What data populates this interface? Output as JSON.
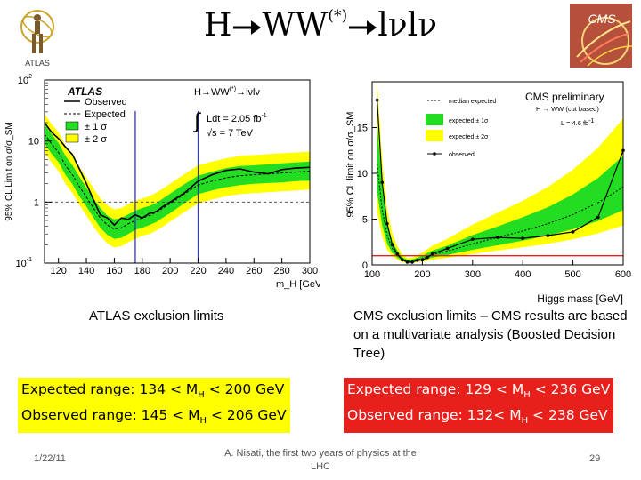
{
  "slide": {
    "title_prefix": "H",
    "title_ww": "WW",
    "title_sup": "(*)",
    "title_suffix": "lνlν",
    "atlas_logo_text": "ATLAS",
    "cms_logo_text": "CMS",
    "atlas_caption": "ATLAS exclusion limits",
    "cms_caption": "CMS exclusion limits – CMS results are based on a multivariate analysis (Boosted Decision Tree)",
    "atlas_expected": {
      "prefix": "Expected range: 134 < M",
      "sub": "H",
      "suffix": " < 200 GeV"
    },
    "atlas_observed": {
      "prefix": "Observed range: 145 < M",
      "sub": "H",
      "suffix": " < 206 GeV"
    },
    "cms_expected": {
      "prefix": "Expected range: 129 < M",
      "sub": "H",
      "suffix": " < 236 GeV"
    },
    "cms_observed": {
      "prefix": "Observed range: 132< M",
      "sub": "H",
      "suffix": " < 238 GeV"
    },
    "footer_date": "1/22/11",
    "footer_source": "A. Nisati, the first two years of physics at the LHC",
    "footer_page": "29",
    "colors": {
      "green_band": "#22dd22",
      "yellow_band": "#ffff00",
      "cms_red": "#e8201c",
      "mass_line": "#3333cc"
    }
  },
  "chart_data": [
    {
      "type": "line",
      "experiment": "ATLAS",
      "title": "",
      "xlabel": "m_H [GeV]",
      "ylabel": "95% CL Limit on σ/σ_SM",
      "yscale": "log",
      "xlim": [
        110,
        300
      ],
      "ylim": [
        0.1,
        100
      ],
      "x_ticks": [
        120,
        140,
        160,
        180,
        200,
        220,
        240,
        260,
        280,
        300
      ],
      "y_ticks": [
        {
          "value": 0.1,
          "base": "10",
          "exp": "-1"
        },
        {
          "value": 1,
          "label": "1"
        },
        {
          "value": 10,
          "label": "10"
        },
        {
          "value": 100,
          "base": "10",
          "exp": "2"
        }
      ],
      "logo": "ATLAS",
      "process": "H→WW",
      "process_sup": "(*)",
      "process_suffix": "→lνlν",
      "lumi_text": "Ldt = 2.05 fb",
      "lumi_sup": "-1",
      "energy_text": "√s = 7 TeV",
      "legend": [
        "Observed",
        "Expected",
        "± 1 σ",
        "± 2 σ"
      ],
      "mass_lines": [
        175,
        220
      ],
      "x": [
        110,
        115,
        120,
        125,
        130,
        135,
        140,
        145,
        150,
        155,
        160,
        165,
        170,
        175,
        180,
        185,
        190,
        195,
        200,
        210,
        220,
        230,
        240,
        250,
        260,
        270,
        280,
        290,
        300
      ],
      "series": [
        {
          "name": "Observed",
          "values": [
            20,
            14,
            11,
            8,
            6,
            3.5,
            2,
            1.1,
            0.62,
            0.55,
            0.42,
            0.55,
            0.52,
            0.62,
            0.55,
            0.65,
            0.7,
            0.85,
            1.0,
            1.4,
            2.2,
            2.8,
            3.3,
            3.5,
            3.1,
            2.9,
            3.4,
            3.6,
            3.7
          ]
        },
        {
          "name": "Expected",
          "values": [
            13,
            9,
            6.5,
            4,
            2.8,
            1.8,
            1.2,
            0.8,
            0.55,
            0.42,
            0.36,
            0.38,
            0.44,
            0.5,
            0.55,
            0.6,
            0.68,
            0.8,
            0.95,
            1.35,
            1.9,
            2.2,
            2.5,
            2.7,
            2.8,
            2.9,
            3.0,
            3.1,
            3.2
          ]
        },
        {
          "name": "±1σ low",
          "values": [
            9,
            6.2,
            4.5,
            2.8,
            1.95,
            1.25,
            0.85,
            0.56,
            0.38,
            0.29,
            0.25,
            0.26,
            0.3,
            0.35,
            0.38,
            0.42,
            0.47,
            0.56,
            0.66,
            0.95,
            1.35,
            1.55,
            1.75,
            1.9,
            2.0,
            2.05,
            2.1,
            2.2,
            2.25
          ]
        },
        {
          "name": "±1σ high",
          "values": [
            19,
            13,
            9.3,
            5.7,
            4.0,
            2.6,
            1.7,
            1.15,
            0.8,
            0.6,
            0.52,
            0.55,
            0.63,
            0.72,
            0.8,
            0.86,
            0.97,
            1.15,
            1.37,
            1.95,
            2.7,
            3.15,
            3.6,
            3.9,
            4.0,
            4.15,
            4.3,
            4.45,
            4.6
          ]
        },
        {
          "name": "±2σ low",
          "values": [
            6.5,
            4.5,
            3.2,
            2.0,
            1.4,
            0.9,
            0.6,
            0.4,
            0.28,
            0.21,
            0.18,
            0.19,
            0.22,
            0.25,
            0.28,
            0.3,
            0.34,
            0.4,
            0.48,
            0.68,
            0.95,
            1.1,
            1.25,
            1.35,
            1.4,
            1.45,
            1.5,
            1.55,
            1.6
          ]
        },
        {
          "name": "±2σ high",
          "values": [
            28,
            19,
            14,
            8.5,
            6.0,
            3.8,
            2.5,
            1.7,
            1.15,
            0.88,
            0.76,
            0.8,
            0.92,
            1.05,
            1.15,
            1.25,
            1.42,
            1.68,
            2.0,
            2.85,
            4.0,
            4.6,
            5.2,
            5.7,
            5.9,
            6.1,
            6.3,
            6.5,
            6.7
          ]
        }
      ]
    },
    {
      "type": "line",
      "experiment": "CMS",
      "title": "CMS preliminary",
      "subtitle": "H → WW (cut based)",
      "lumi": "L = 4.6 fb",
      "lumi_sup": "-1",
      "xlabel": "Higgs mass [GeV]",
      "ylabel": "95% CL limit on σ/σ_SM",
      "xlim": [
        100,
        600
      ],
      "ylim": [
        0,
        20
      ],
      "x_ticks": [
        100,
        200,
        300,
        400,
        500,
        600
      ],
      "y_ticks": [
        0,
        5,
        10,
        15
      ],
      "legend": [
        "median expected",
        "expected ± 1σ",
        "expected ± 2σ",
        "observed"
      ],
      "reference_line": 1,
      "x": [
        110,
        120,
        130,
        140,
        150,
        160,
        170,
        180,
        190,
        200,
        210,
        220,
        250,
        300,
        350,
        400,
        450,
        500,
        550,
        600
      ],
      "series": [
        {
          "name": "observed",
          "values": [
            18,
            9,
            4.5,
            2.2,
            1.2,
            0.55,
            0.3,
            0.3,
            0.5,
            0.55,
            0.8,
            1.2,
            1.8,
            2.8,
            3.0,
            2.9,
            3.2,
            3.6,
            5.2,
            12.5
          ]
        },
        {
          "name": "median expected",
          "values": [
            11,
            6,
            3.2,
            1.8,
            1.1,
            0.6,
            0.4,
            0.42,
            0.55,
            0.7,
            0.9,
            1.1,
            1.5,
            2.3,
            3.0,
            3.7,
            4.5,
            5.5,
            6.8,
            8.5
          ]
        },
        {
          "name": "±1σ low",
          "values": [
            8,
            4.3,
            2.3,
            1.3,
            0.8,
            0.43,
            0.29,
            0.3,
            0.4,
            0.5,
            0.65,
            0.8,
            1.08,
            1.65,
            2.15,
            2.65,
            3.2,
            3.9,
            4.8,
            6.0
          ]
        },
        {
          "name": "±1σ high",
          "values": [
            15.5,
            8.5,
            4.5,
            2.55,
            1.55,
            0.85,
            0.57,
            0.6,
            0.78,
            1.0,
            1.28,
            1.55,
            2.1,
            3.25,
            4.2,
            5.2,
            6.3,
            7.7,
            9.5,
            11.9
          ]
        },
        {
          "name": "±2σ low",
          "values": [
            5.8,
            3.1,
            1.65,
            0.95,
            0.58,
            0.31,
            0.21,
            0.22,
            0.29,
            0.36,
            0.47,
            0.58,
            0.78,
            1.2,
            1.56,
            1.92,
            2.3,
            2.8,
            3.45,
            4.3
          ]
        },
        {
          "name": "±2σ high",
          "values": [
            20,
            11.5,
            6.1,
            3.45,
            2.1,
            1.15,
            0.77,
            0.8,
            1.05,
            1.35,
            1.72,
            2.1,
            2.85,
            4.4,
            5.7,
            7.0,
            8.5,
            10.4,
            12.8,
            16.0
          ]
        }
      ]
    }
  ]
}
